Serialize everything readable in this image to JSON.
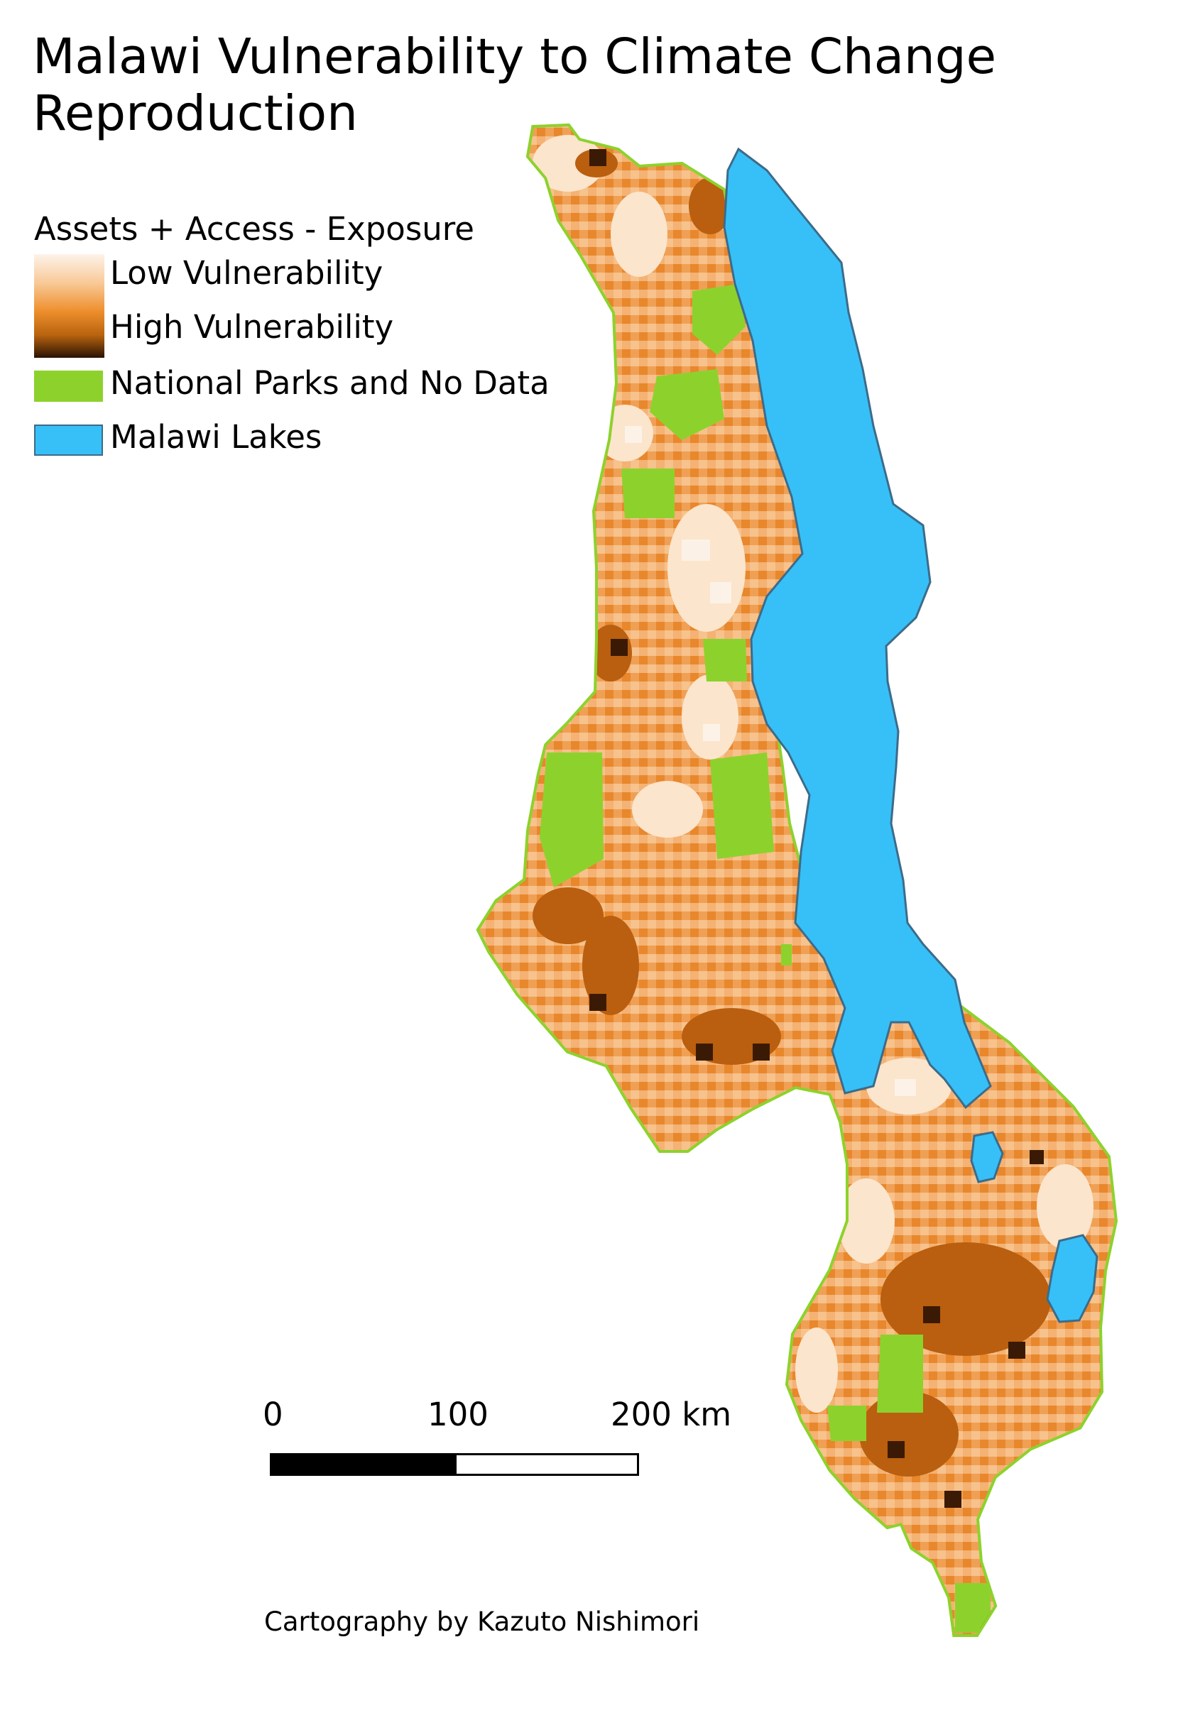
{
  "map": {
    "title_line1": "Malawi Vulnerability to Climate Change",
    "title_line2": "Reproduction",
    "legend": {
      "heading": "Assets + Access - Exposure",
      "items": [
        {
          "label": "Low Vulnerability",
          "color": "#fbe3c8"
        },
        {
          "label": "High Vulnerability",
          "color": "#2a1203"
        },
        {
          "label": "National Parks and No Data",
          "color": "#8dd22c"
        },
        {
          "label": "Malawi Lakes",
          "color": "#36c0f7"
        }
      ]
    },
    "scale": {
      "tick_0": "0",
      "tick_1": "100",
      "tick_2": "200 km"
    },
    "credit": "Cartography by Kazuto Nishimori",
    "colors": {
      "vulnerability_low": "#fdf3ea",
      "vulnerability_mid": "#ee8f2d",
      "vulnerability_high": "#2a1203",
      "national_parks": "#8dd22c",
      "lakes": "#36c0f7",
      "lake_outline": "#3d6b8a"
    }
  }
}
